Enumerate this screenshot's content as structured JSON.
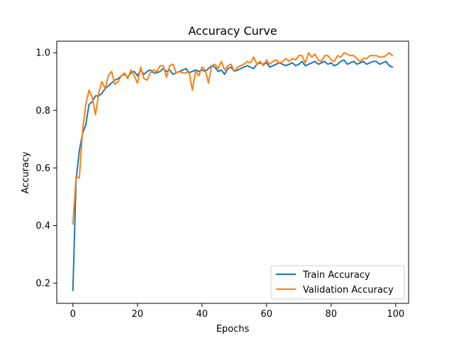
{
  "chart_data": {
    "type": "line",
    "title": "Accuracy Curve",
    "xlabel": "Epochs",
    "ylabel": "Accuracy",
    "xlim": [
      -5,
      104
    ],
    "ylim": [
      0.13,
      1.04
    ],
    "xticks": [
      0,
      20,
      40,
      60,
      80,
      100
    ],
    "yticks": [
      0.2,
      0.4,
      0.6,
      0.8,
      1.0
    ],
    "ytick_labels": [
      "0.2",
      "0.4",
      "0.6",
      "0.8",
      "1.0"
    ],
    "grid": false,
    "legend": "lower-right",
    "x": [
      0,
      1,
      2,
      3,
      4,
      5,
      6,
      7,
      8,
      9,
      10,
      11,
      12,
      13,
      14,
      15,
      16,
      17,
      18,
      19,
      20,
      21,
      22,
      23,
      24,
      25,
      26,
      27,
      28,
      29,
      30,
      31,
      32,
      33,
      34,
      35,
      36,
      37,
      38,
      39,
      40,
      41,
      42,
      43,
      44,
      45,
      46,
      47,
      48,
      49,
      50,
      51,
      52,
      53,
      54,
      55,
      56,
      57,
      58,
      59,
      60,
      61,
      62,
      63,
      64,
      65,
      66,
      67,
      68,
      69,
      70,
      71,
      72,
      73,
      74,
      75,
      76,
      77,
      78,
      79,
      80,
      81,
      82,
      83,
      84,
      85,
      86,
      87,
      88,
      89,
      90,
      91,
      92,
      93,
      94,
      95,
      96,
      97,
      98,
      99
    ],
    "series": [
      {
        "name": "Train Accuracy",
        "color": "#1f77b4",
        "values": [
          0.175,
          0.56,
          0.66,
          0.72,
          0.75,
          0.82,
          0.83,
          0.85,
          0.85,
          0.86,
          0.875,
          0.885,
          0.895,
          0.905,
          0.91,
          0.92,
          0.925,
          0.915,
          0.93,
          0.935,
          0.92,
          0.94,
          0.925,
          0.935,
          0.94,
          0.93,
          0.93,
          0.935,
          0.945,
          0.935,
          0.94,
          0.925,
          0.93,
          0.935,
          0.94,
          0.945,
          0.93,
          0.935,
          0.94,
          0.935,
          0.94,
          0.935,
          0.945,
          0.955,
          0.95,
          0.935,
          0.94,
          0.925,
          0.945,
          0.95,
          0.935,
          0.94,
          0.945,
          0.95,
          0.955,
          0.95,
          0.945,
          0.96,
          0.965,
          0.96,
          0.965,
          0.95,
          0.955,
          0.96,
          0.965,
          0.96,
          0.955,
          0.96,
          0.965,
          0.955,
          0.96,
          0.97,
          0.955,
          0.96,
          0.965,
          0.97,
          0.96,
          0.965,
          0.97,
          0.96,
          0.965,
          0.955,
          0.96,
          0.97,
          0.975,
          0.96,
          0.965,
          0.97,
          0.96,
          0.965,
          0.97,
          0.96,
          0.965,
          0.97,
          0.97,
          0.96,
          0.965,
          0.97,
          0.955,
          0.95
        ]
      },
      {
        "name": "Validation Accuracy",
        "color": "#ff7f0e",
        "values": [
          0.405,
          0.57,
          0.565,
          0.73,
          0.82,
          0.87,
          0.845,
          0.785,
          0.86,
          0.9,
          0.875,
          0.92,
          0.935,
          0.89,
          0.9,
          0.92,
          0.93,
          0.91,
          0.94,
          0.92,
          0.895,
          0.95,
          0.91,
          0.905,
          0.93,
          0.94,
          0.935,
          0.955,
          0.955,
          0.915,
          0.955,
          0.96,
          0.93,
          0.935,
          0.93,
          0.93,
          0.935,
          0.87,
          0.935,
          0.92,
          0.95,
          0.94,
          0.895,
          0.955,
          0.96,
          0.945,
          0.97,
          0.94,
          0.955,
          0.96,
          0.935,
          0.95,
          0.955,
          0.96,
          0.97,
          0.965,
          0.985,
          0.96,
          0.97,
          0.955,
          0.975,
          0.96,
          0.97,
          0.975,
          0.965,
          0.97,
          0.98,
          0.97,
          0.98,
          0.975,
          0.99,
          0.99,
          0.965,
          1.0,
          0.985,
          0.995,
          0.975,
          0.97,
          0.99,
          0.99,
          0.975,
          0.97,
          0.99,
          0.985,
          1.0,
          0.995,
          0.99,
          0.99,
          0.98,
          0.97,
          0.98,
          0.98,
          0.99,
          0.99,
          0.99,
          0.985,
          0.985,
          0.99,
          1.0,
          0.99
        ]
      }
    ]
  }
}
